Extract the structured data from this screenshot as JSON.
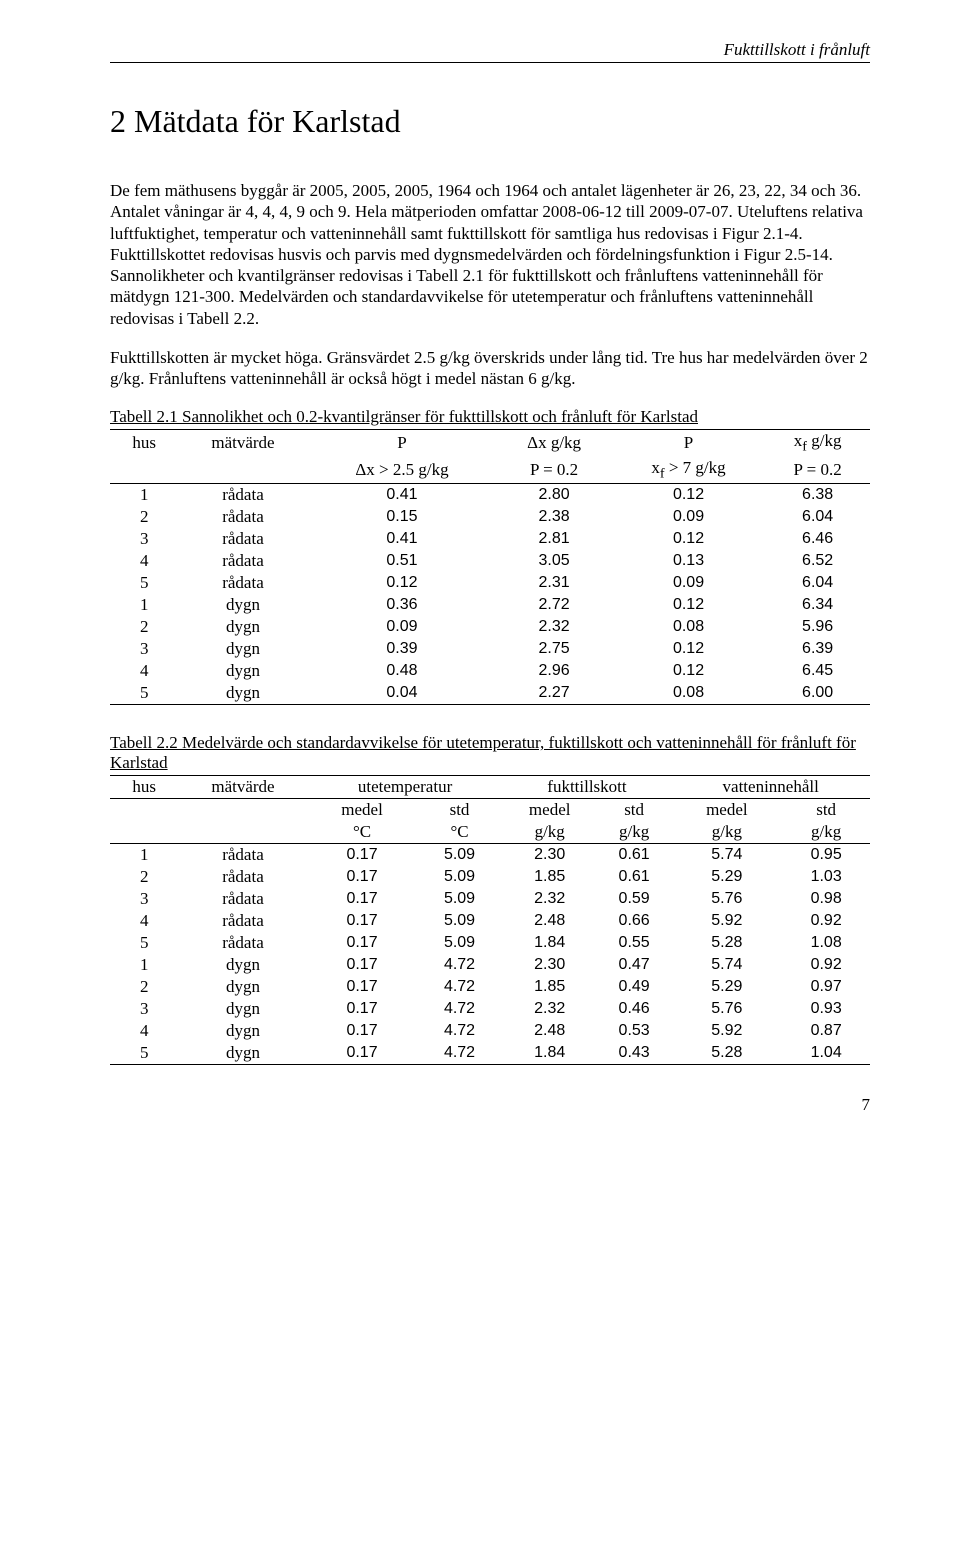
{
  "running_head": "Fukttillskott i frånluft",
  "section_title": "2  Mätdata för Karlstad",
  "para1": "De fem mäthusens byggår är 2005, 2005, 2005, 1964 och 1964 och antalet lägenheter är 26, 23, 22, 34 och 36. Antalet våningar är 4, 4, 4, 9 och 9. Hela mätperioden omfattar 2008-06-12 till 2009-07-07. Uteluftens relativa luftfuktighet, temperatur och vatteninnehåll samt fukttillskott för samtliga hus redovisas i Figur 2.1-4. Fukttillskottet redovisas husvis och parvis med dygnsmedelvärden och fördelningsfunktion i Figur 2.5-14. Sannolikheter och kvantilgränser redovisas i Tabell 2.1 för fukttillskott och frånluftens vatteninnehåll för mätdygn 121-300. Medelvärden och standardavvikelse för utetemperatur och frånluftens vatteninnehåll redovisas i Tabell 2.2.",
  "para2": "Fukttillskotten är mycket höga. Gränsvärdet 2.5 g/kg överskrids under lång tid. Tre hus har medelvärden över 2 g/kg. Frånluftens vatteninnehåll är också högt i medel nästan 6 g/kg.",
  "table1": {
    "caption": "Tabell 2.1 Sannolikhet och 0.2-kvantilgränser för fukttillskott och frånluft för Karlstad",
    "head1": [
      "hus",
      "mätvärde",
      "P",
      "Δx g/kg",
      "P",
      "x f g/kg"
    ],
    "head2": [
      "",
      "",
      "Δx > 2.5 g/kg",
      "P = 0.2",
      "x f > 7 g/kg",
      "P = 0.2"
    ],
    "rows": [
      [
        "1",
        "rådata",
        "0.41",
        "2.80",
        "0.12",
        "6.38"
      ],
      [
        "2",
        "rådata",
        "0.15",
        "2.38",
        "0.09",
        "6.04"
      ],
      [
        "3",
        "rådata",
        "0.41",
        "2.81",
        "0.12",
        "6.46"
      ],
      [
        "4",
        "rådata",
        "0.51",
        "3.05",
        "0.13",
        "6.52"
      ],
      [
        "5",
        "rådata",
        "0.12",
        "2.31",
        "0.09",
        "6.04"
      ],
      [
        "1",
        "dygn",
        "0.36",
        "2.72",
        "0.12",
        "6.34"
      ],
      [
        "2",
        "dygn",
        "0.09",
        "2.32",
        "0.08",
        "5.96"
      ],
      [
        "3",
        "dygn",
        "0.39",
        "2.75",
        "0.12",
        "6.39"
      ],
      [
        "4",
        "dygn",
        "0.48",
        "2.96",
        "0.12",
        "6.45"
      ],
      [
        "5",
        "dygn",
        "0.04",
        "2.27",
        "0.08",
        "6.00"
      ]
    ]
  },
  "table2": {
    "caption": "Tabell 2.2 Medelvärde och standardavvikelse för utetemperatur, fuktillskott och vatteninnehåll för frånluft för Karlstad",
    "group_heads": [
      "hus",
      "mätvärde",
      "utetemperatur",
      "fukttillskott",
      "vatteninnehåll"
    ],
    "sub_heads": [
      "medel",
      "std",
      "medel",
      "std",
      "medel",
      "std"
    ],
    "units": [
      "°C",
      "°C",
      "g/kg",
      "g/kg",
      "g/kg",
      "g/kg"
    ],
    "rows": [
      [
        "1",
        "rådata",
        "0.17",
        "5.09",
        "2.30",
        "0.61",
        "5.74",
        "0.95"
      ],
      [
        "2",
        "rådata",
        "0.17",
        "5.09",
        "1.85",
        "0.61",
        "5.29",
        "1.03"
      ],
      [
        "3",
        "rådata",
        "0.17",
        "5.09",
        "2.32",
        "0.59",
        "5.76",
        "0.98"
      ],
      [
        "4",
        "rådata",
        "0.17",
        "5.09",
        "2.48",
        "0.66",
        "5.92",
        "0.92"
      ],
      [
        "5",
        "rådata",
        "0.17",
        "5.09",
        "1.84",
        "0.55",
        "5.28",
        "1.08"
      ],
      [
        "1",
        "dygn",
        "0.17",
        "4.72",
        "2.30",
        "0.47",
        "5.74",
        "0.92"
      ],
      [
        "2",
        "dygn",
        "0.17",
        "4.72",
        "1.85",
        "0.49",
        "5.29",
        "0.97"
      ],
      [
        "3",
        "dygn",
        "0.17",
        "4.72",
        "2.32",
        "0.46",
        "5.76",
        "0.93"
      ],
      [
        "4",
        "dygn",
        "0.17",
        "4.72",
        "2.48",
        "0.53",
        "5.92",
        "0.87"
      ],
      [
        "5",
        "dygn",
        "0.17",
        "4.72",
        "1.84",
        "0.43",
        "5.28",
        "1.04"
      ]
    ]
  },
  "page_number": "7"
}
